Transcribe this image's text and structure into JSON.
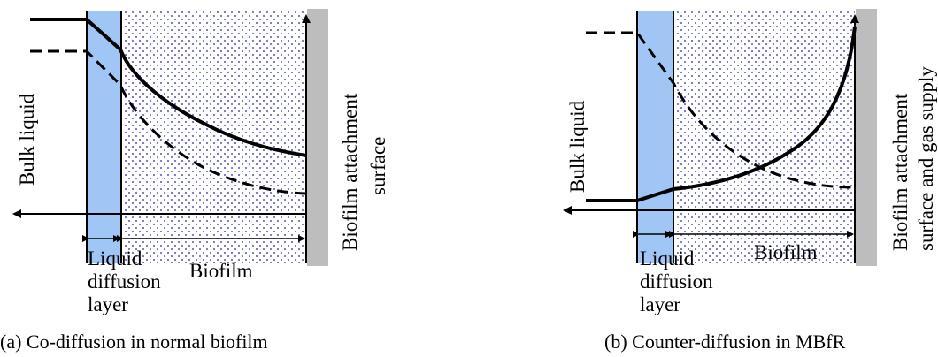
{
  "colors": {
    "diffusion_layer": "#9fc6f5",
    "biofilm_dots": "#5b5bb8",
    "attachment_surface": "#bdbdbd",
    "lines": "#000000"
  },
  "panel_a": {
    "caption": "(a) Co-diffusion  in normal biofilm",
    "bulk_label": "Bulk  liquid",
    "layer_label_line1": "Liquid",
    "layer_label_line2": "diffusion",
    "layer_label_line3": "layer",
    "biofilm_label": "Biofilm",
    "surface_label_line1": "Biofilm attachment",
    "surface_label_line2": "surface"
  },
  "panel_b": {
    "caption": "(b) Counter-diffusion in MBfR",
    "bulk_label": "Bulk  liquid",
    "layer_label_line1": "Liquid",
    "layer_label_line2": "diffusion",
    "layer_label_line3": "layer",
    "biofilm_label": "Biofilm",
    "surface_label_line1": "Biofilm attachment",
    "surface_label_line2": "surface and gas supply"
  }
}
